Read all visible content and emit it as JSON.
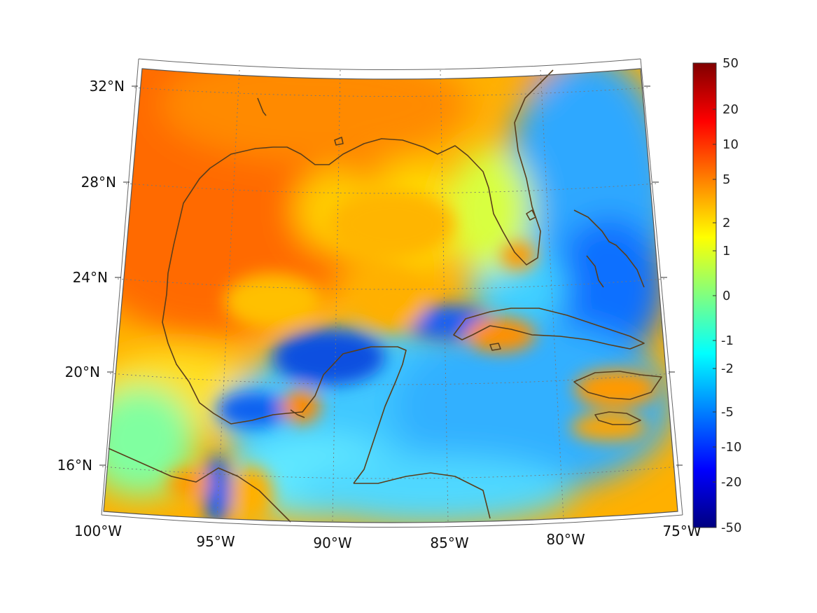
{
  "map": {
    "latitude_labels": [
      "32°N",
      "28°N",
      "24°N",
      "20°N",
      "16°N"
    ],
    "longitude_labels": [
      "100°W",
      "95°W",
      "90°W",
      "85°W",
      "80°W",
      "75°W"
    ],
    "regions": [
      "Gulf of Mexico",
      "Caribbean Sea",
      "Florida",
      "Cuba",
      "Yucatán Peninsula",
      "Bahamas",
      "Hispaniola",
      "Jamaica",
      "Central America"
    ],
    "extent": {
      "lon_min": -100,
      "lon_max": -75,
      "lat_min": 14,
      "lat_max": 32
    }
  },
  "colorbar": {
    "labels": [
      "50",
      "20",
      "10",
      "5",
      "2",
      "1",
      "0",
      "-1",
      "-2",
      "-5",
      "-10",
      "-20",
      "-50"
    ],
    "colormap": "jet",
    "colors": [
      "#800000",
      "#ff0000",
      "#ff8000",
      "#ffff00",
      "#80ff80",
      "#00ffff",
      "#0080ff",
      "#0000ff",
      "#000080"
    ]
  },
  "colors": {
    "coastline": "#5a3e1b",
    "gridline": "#888888"
  }
}
